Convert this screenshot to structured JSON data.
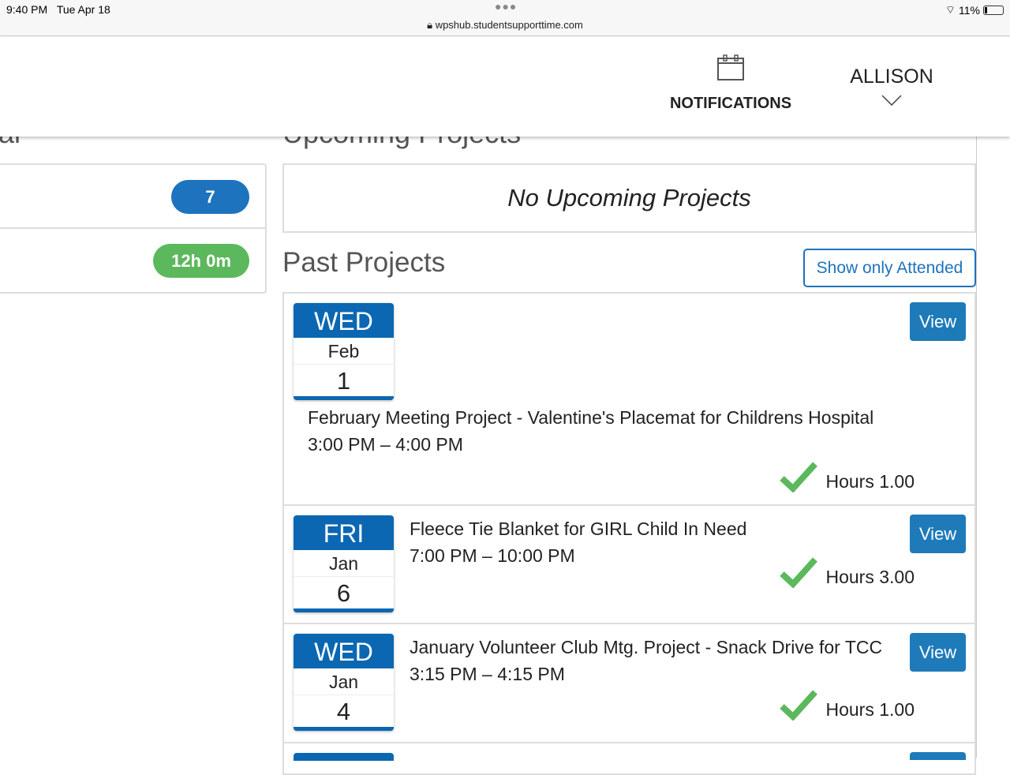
{
  "status_bar": {
    "time": "9:40 PM",
    "date": "Tue Apr 18",
    "url": "wpshub.studentsupporttime.com",
    "battery": "11%"
  },
  "header": {
    "notifications_label": "NOTIFICATIONS",
    "user_name": "ALLISON"
  },
  "peek": {
    "left_heading": "al",
    "right_heading": "Upcoming Projects"
  },
  "summary": {
    "count": "7",
    "time": "12h 0m",
    "colors": {
      "blue": "#1e73be",
      "green": "#5cb85c"
    }
  },
  "upcoming": {
    "empty_text": "No Upcoming Projects"
  },
  "past": {
    "title": "Past Projects",
    "filter_button": "Show only Attended",
    "view_label": "View",
    "items": [
      {
        "dow": "WED",
        "month": "Feb",
        "day": "1",
        "title": "February Meeting Project - Valentine's Placemat for Childrens Hospital",
        "time": "3:00 PM – 4:00 PM",
        "hours": "Hours 1.00"
      },
      {
        "dow": "FRI",
        "month": "Jan",
        "day": "6",
        "title": "Fleece Tie Blanket for GIRL Child In Need",
        "time": "7:00 PM – 10:00 PM",
        "hours": "Hours 3.00"
      },
      {
        "dow": "WED",
        "month": "Jan",
        "day": "4",
        "title": "January Volunteer Club Mtg. Project - Snack Drive for TCC",
        "time": "3:15 PM – 4:15 PM",
        "hours": "Hours 1.00"
      }
    ]
  }
}
